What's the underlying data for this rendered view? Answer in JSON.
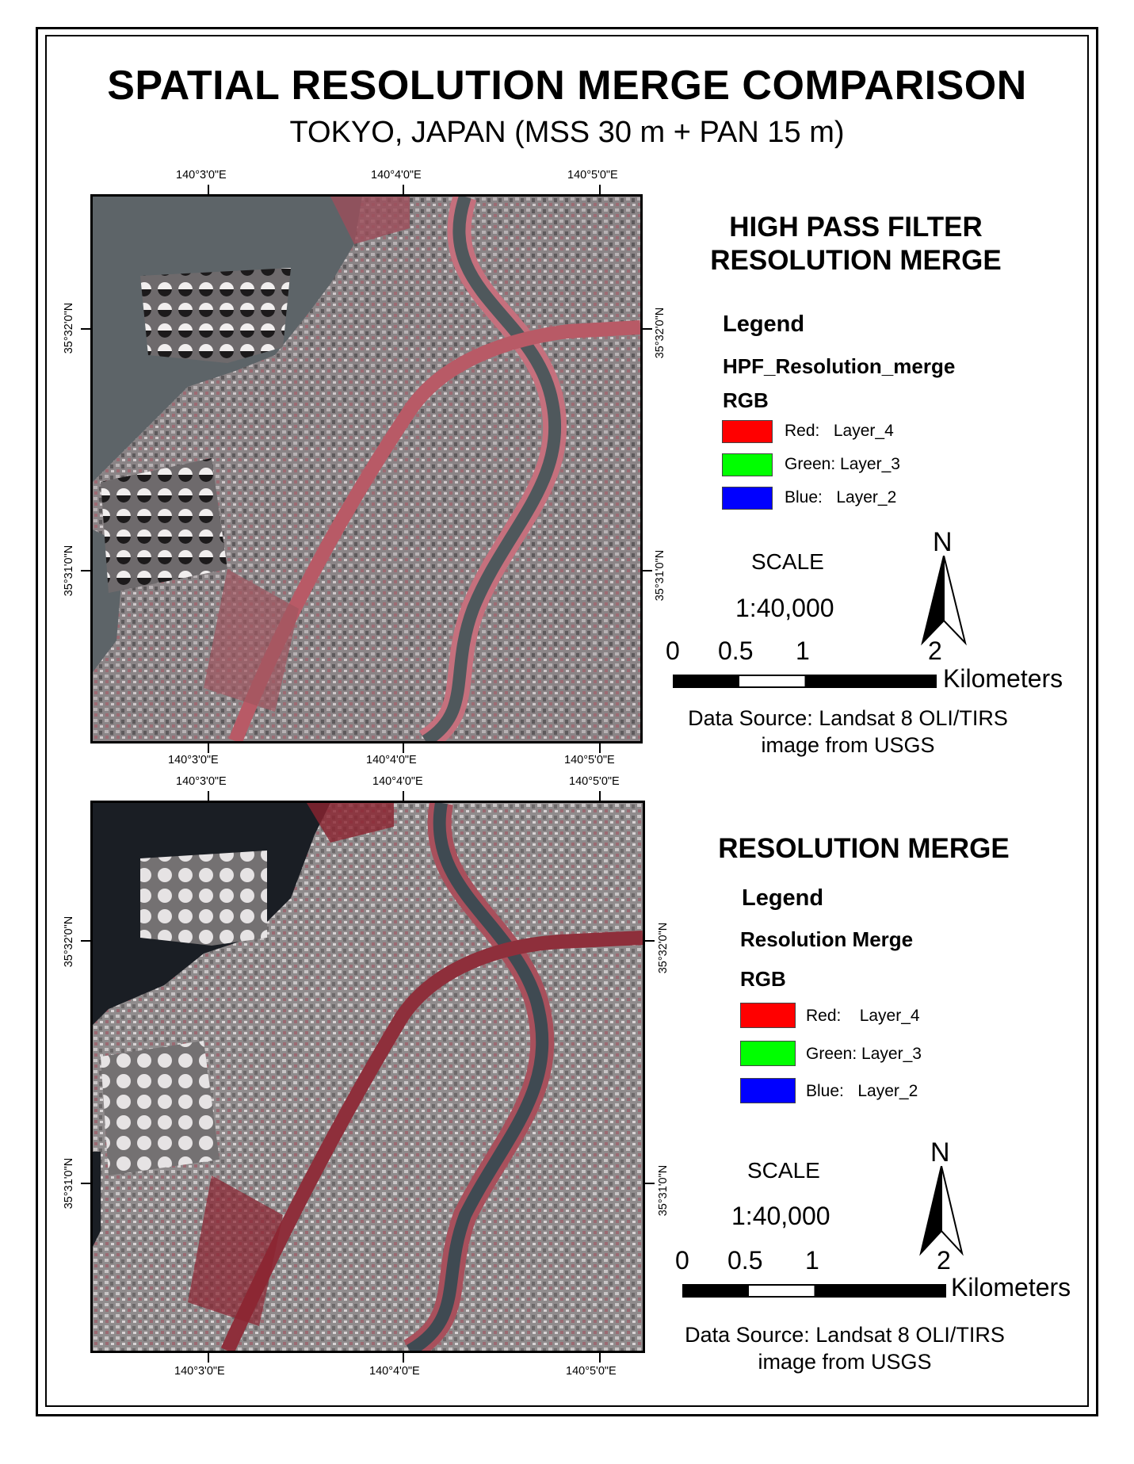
{
  "title": "SPATIAL RESOLUTION MERGE COMPARISON",
  "subtitle": "TOKYO, JAPAN (MSS 30 m + PAN 15 m)",
  "coords": {
    "lon": [
      "140°3'0\"E",
      "140°4'0\"E",
      "140°5'0\"E"
    ],
    "lat": [
      "35°32'0\"N",
      "35°31'0\"N"
    ]
  },
  "panels": [
    {
      "title_line1": "HIGH PASS FILTER",
      "title_line2": "RESOLUTION MERGE",
      "legend_heading": "Legend",
      "layer_name": "HPF_Resolution_merge",
      "rgb_label": "RGB",
      "bands": [
        {
          "label": "Red:   Layer_4",
          "color": "#ff0000"
        },
        {
          "label": "Green: Layer_3",
          "color": "#00ff00"
        },
        {
          "label": "Blue:   Layer_2",
          "color": "#0000ff"
        }
      ],
      "scale_word": "SCALE",
      "scale_ratio": "1:40,000",
      "bar_labels": [
        "0",
        "0.5",
        "1",
        "2"
      ],
      "bar_unit": "Kilometers",
      "north": "N",
      "source_line1": "Data Source: Landsat 8 OLI/TIRS",
      "source_line2": "image from USGS"
    },
    {
      "title_line1": "RESOLUTION MERGE",
      "legend_heading": "Legend",
      "layer_name": "Resolution Merge",
      "rgb_label": "RGB",
      "bands": [
        {
          "label": "Red:    Layer_4",
          "color": "#ff0000"
        },
        {
          "label": "Green: Layer_3",
          "color": "#00ff00"
        },
        {
          "label": "Blue:   Layer_2",
          "color": "#0000ff"
        }
      ],
      "scale_word": "SCALE",
      "scale_ratio": "1:40,000",
      "bar_labels": [
        "0",
        "0.5",
        "1",
        "2"
      ],
      "bar_unit": "Kilometers",
      "north": "N",
      "source_line1": "Data Source: Landsat 8 OLI/TIRS",
      "source_line2": "image from USGS"
    }
  ]
}
